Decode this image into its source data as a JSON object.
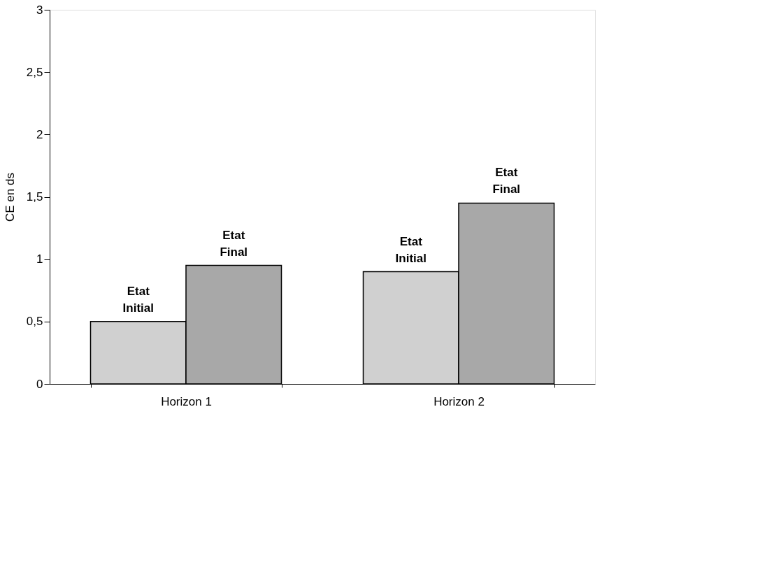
{
  "chart_data": {
    "type": "bar",
    "ylabel": "CE en ds",
    "categories": [
      "Horizon 1",
      "Horizon 2"
    ],
    "series": [
      {
        "name": "Etat Initial",
        "color": "#d0d0d0",
        "values": [
          0.5,
          0.9
        ]
      },
      {
        "name": "Etat Final",
        "color": "#a8a8a8",
        "values": [
          0.95,
          1.45
        ]
      }
    ],
    "ylim": [
      0,
      3
    ],
    "yticks": [
      0,
      {
        "value": 0.5,
        "label": "0,5"
      },
      1,
      {
        "value": 1.5,
        "label": "1,5"
      },
      2,
      {
        "value": 2.5,
        "label": "2,5"
      },
      3
    ],
    "grid": false,
    "legend": false
  }
}
